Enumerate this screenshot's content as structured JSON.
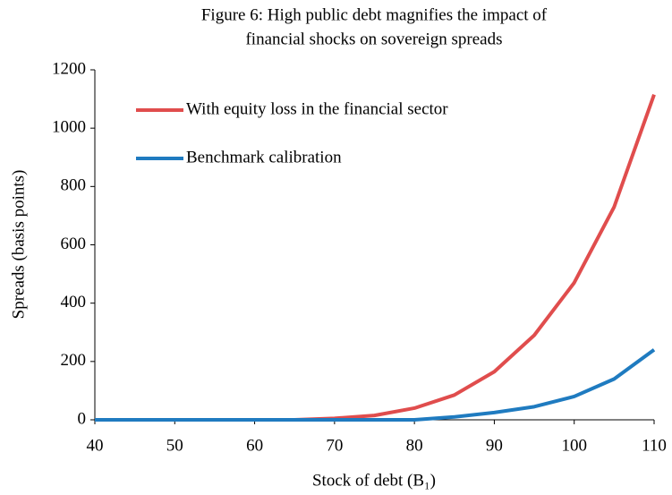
{
  "chart_data": {
    "type": "line",
    "title": [
      "Figure 6: High public debt magnifies the impact of",
      "financial shocks on sovereign spreads"
    ],
    "x_label": "Stock of debt (B₁)",
    "y_label": "Spreads (basis points)",
    "x": [
      40,
      45,
      50,
      55,
      60,
      65,
      70,
      75,
      80,
      85,
      90,
      95,
      100,
      105,
      110
    ],
    "series": [
      {
        "name": "With equity loss in the financial sector",
        "color": "#e04d4d",
        "values": [
          0,
          0,
          0,
          0,
          0,
          0,
          5,
          15,
          40,
          85,
          165,
          290,
          470,
          730,
          1115
        ]
      },
      {
        "name": "Benchmark calibration",
        "color": "#1f7bc0",
        "values": [
          0,
          0,
          0,
          0,
          0,
          0,
          0,
          0,
          0,
          10,
          25,
          45,
          80,
          140,
          240
        ]
      }
    ],
    "xlim": [
      40,
      110
    ],
    "xticks": [
      40,
      50,
      60,
      70,
      80,
      90,
      100,
      110
    ],
    "ylim": [
      0,
      1200
    ],
    "yticks": [
      0,
      200,
      400,
      600,
      800,
      1000,
      1200
    ],
    "grid": false
  }
}
